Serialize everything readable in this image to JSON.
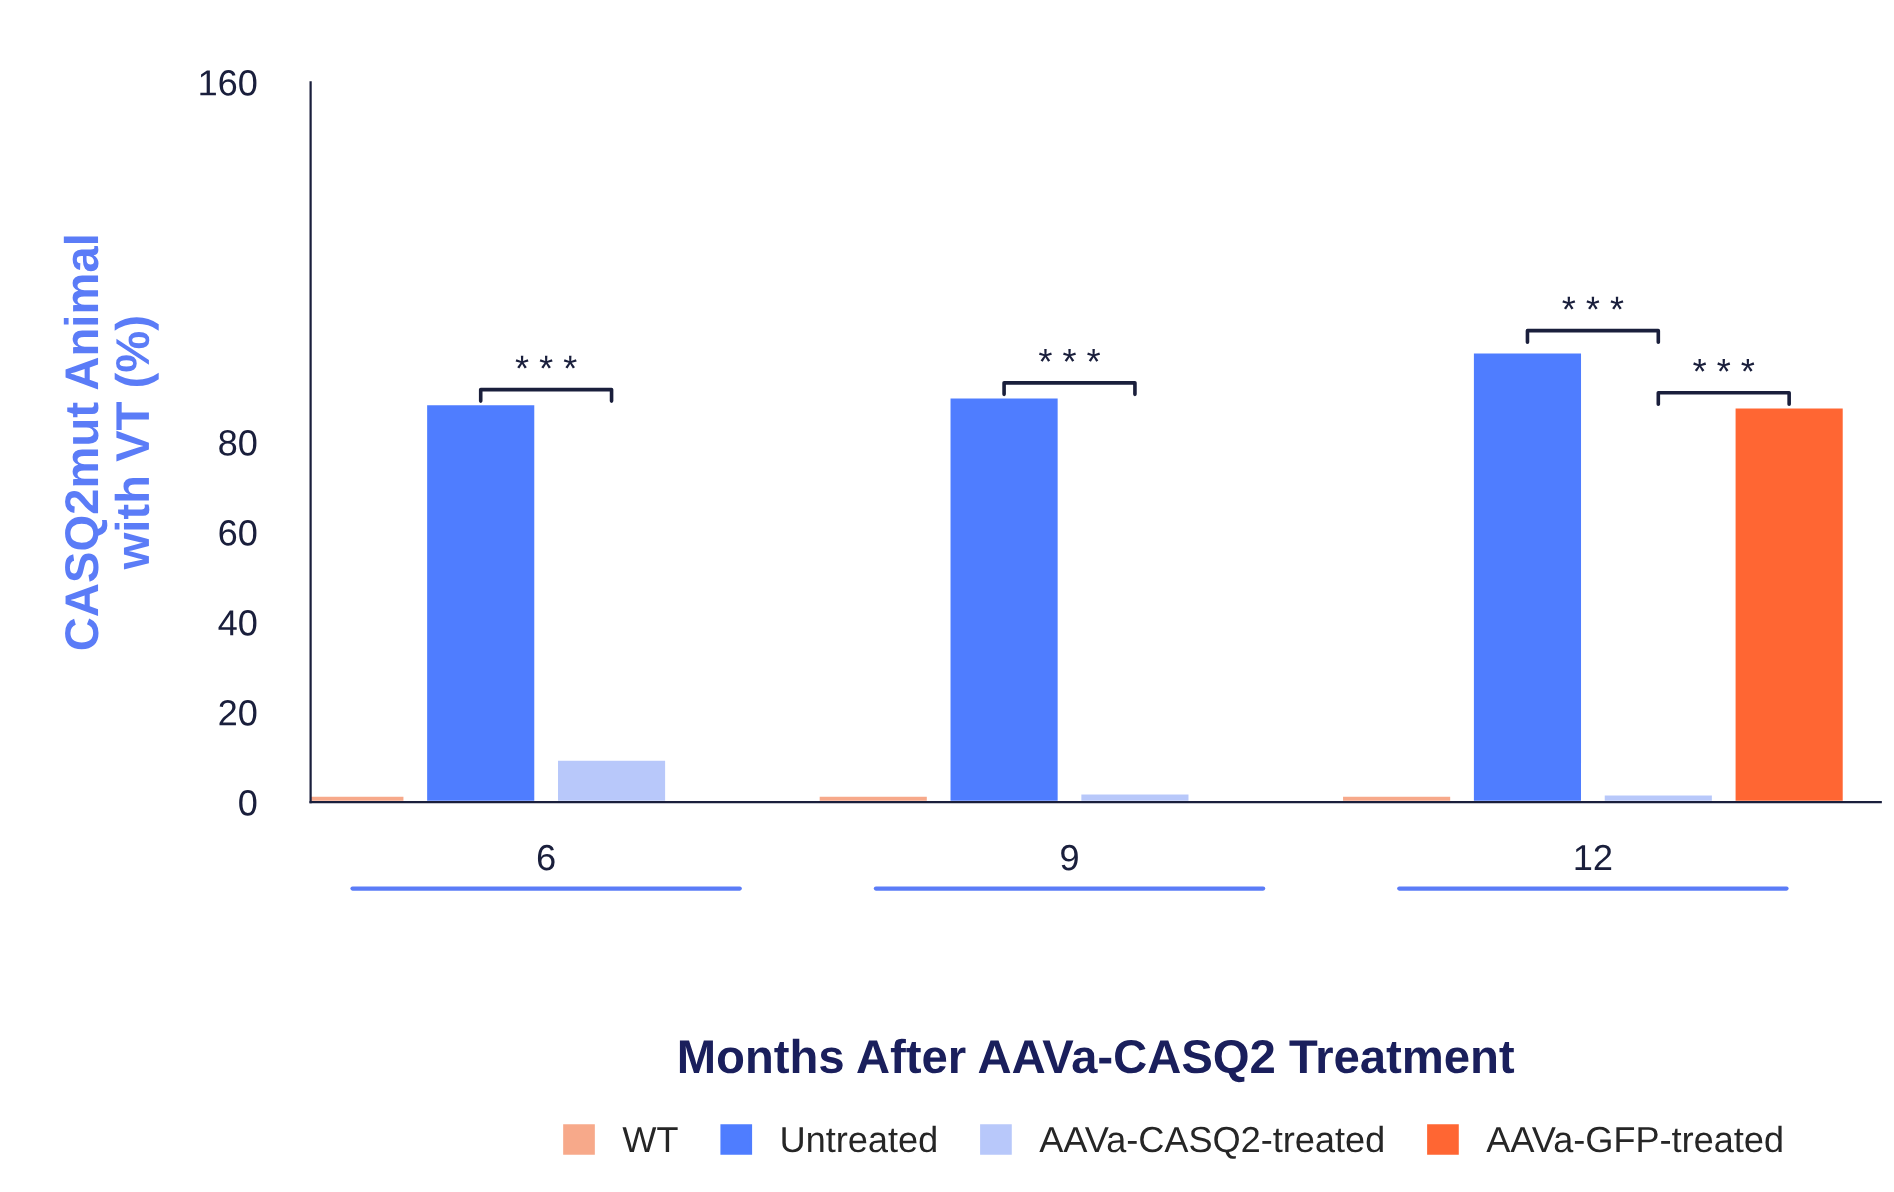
{
  "chart_data": {
    "type": "bar",
    "categories": [
      "6",
      "9",
      "12"
    ],
    "xlabel": "Months After AAVa-CASQ2 Treatment",
    "ylabel": "CASQ2mut Animal\nwith VT (%)",
    "ylim": [
      0,
      160
    ],
    "yticks": [
      0,
      20,
      40,
      60,
      80,
      160
    ],
    "grid": false,
    "legend": "bottom",
    "series": [
      {
        "name": "WT",
        "color": "#f7a98a",
        "values": [
          1.5,
          1.5,
          1.5
        ]
      },
      {
        "name": "Untreated",
        "color": "#4f7dff",
        "values": [
          88.5,
          90,
          100
        ]
      },
      {
        "name": "AAVa-CASQ2-treated",
        "color": "#b8c8fa",
        "values": [
          9.5,
          2,
          1.8
        ]
      },
      {
        "name": "AAVa-GFP-treated",
        "color": "#ff6633",
        "values": [
          null,
          null,
          87.8
        ]
      }
    ],
    "annotations": [
      "* * *",
      "* * *",
      "* * *",
      "* * *"
    ]
  }
}
